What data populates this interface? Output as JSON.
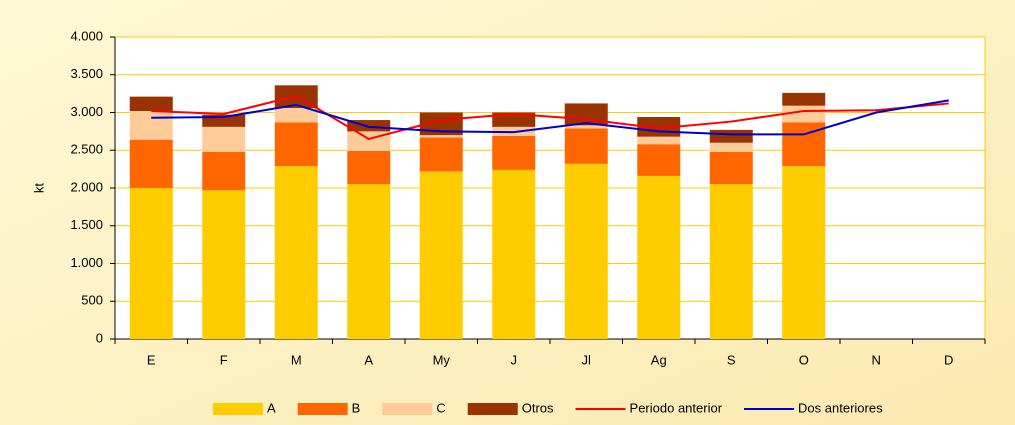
{
  "chart_data": {
    "type": "bar",
    "stacked": true,
    "y_label": "kt",
    "categories": [
      "E",
      "F",
      "M",
      "A",
      "My",
      "J",
      "Jl",
      "Ag",
      "S",
      "O",
      "N",
      "D"
    ],
    "series": [
      {
        "name": "A",
        "type": "bar",
        "color": "#ffcc00",
        "values": [
          2000,
          1970,
          2290,
          2050,
          2220,
          2240,
          2320,
          2160,
          2050,
          2290,
          null,
          null
        ]
      },
      {
        "name": "B",
        "type": "bar",
        "color": "#ff6600",
        "values": [
          640,
          510,
          580,
          440,
          450,
          450,
          470,
          420,
          430,
          580,
          null,
          null
        ]
      },
      {
        "name": "C",
        "type": "bar",
        "color": "#ffcc99",
        "values": [
          380,
          330,
          190,
          260,
          30,
          120,
          40,
          100,
          120,
          220,
          null,
          null
        ]
      },
      {
        "name": "Otros",
        "type": "bar",
        "color": "#993300",
        "values": [
          190,
          160,
          300,
          150,
          300,
          190,
          290,
          260,
          170,
          170,
          null,
          null
        ]
      },
      {
        "name": "Periodo anterior",
        "type": "line",
        "color": "#ff0000",
        "values": [
          3020,
          2980,
          3220,
          2650,
          2900,
          2980,
          2910,
          2790,
          2880,
          3020,
          3030,
          3120
        ]
      },
      {
        "name": "Dos anteriores",
        "type": "line",
        "color": "#0000cc",
        "values": [
          2930,
          2940,
          3100,
          2810,
          2750,
          2740,
          2860,
          2750,
          2710,
          2710,
          3000,
          3160
        ]
      }
    ],
    "ylim": [
      0,
      4000
    ],
    "yticks": [
      0,
      500,
      {
        "value": 1000,
        "label": "1.000"
      },
      {
        "value": 1500,
        "label": "1.500"
      },
      {
        "value": 2000,
        "label": "2.000"
      },
      {
        "value": 2500,
        "label": "2.500"
      },
      {
        "value": 3000,
        "label": "3.000"
      },
      {
        "value": 3500,
        "label": "3.500"
      },
      {
        "value": 4000,
        "label": "4.000"
      }
    ],
    "grid": true,
    "legend": "bottom"
  }
}
